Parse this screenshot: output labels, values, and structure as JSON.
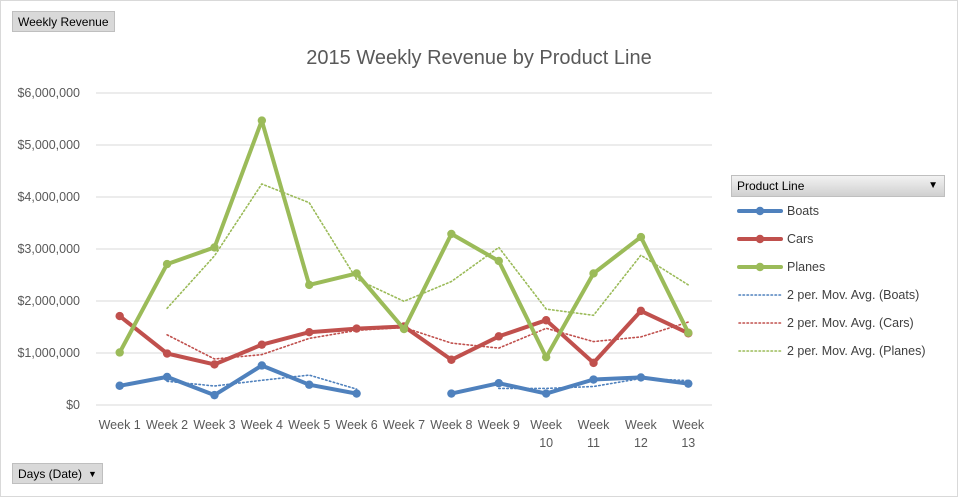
{
  "report_filter_button": {
    "label": "Weekly  Revenue"
  },
  "axis_field_button": {
    "label": "Days (Date)",
    "icon": "dropdown-arrow-icon"
  },
  "legend": {
    "header_label": "Product Line",
    "header_icon": "dropdown-arrow-icon",
    "position": "right"
  },
  "chart_data": {
    "type": "line",
    "title": "2015 Weekly Revenue by Product Line",
    "xlabel": "",
    "ylabel": "",
    "categories": [
      "Week 1",
      "Week 2",
      "Week 3",
      "Week 4",
      "Week 5",
      "Week 6",
      "Week 7",
      "Week 8",
      "Week 9",
      "Week 10",
      "Week 11",
      "Week 12",
      "Week 13"
    ],
    "y_ticks": [
      "$0",
      "$1,000,000",
      "$2,000,000",
      "$3,000,000",
      "$4,000,000",
      "$5,000,000",
      "$6,000,000"
    ],
    "ylim": [
      0,
      6000000
    ],
    "grid": true,
    "series": [
      {
        "name": "Boats",
        "color": "#4f81bd",
        "style": "solid",
        "values": [
          370000,
          540000,
          190000,
          760000,
          390000,
          220000,
          null,
          220000,
          420000,
          220000,
          490000,
          530000,
          410000
        ]
      },
      {
        "name": "Cars",
        "color": "#c0504d",
        "style": "solid",
        "values": [
          1710000,
          990000,
          780000,
          1160000,
          1400000,
          1470000,
          1510000,
          870000,
          1320000,
          1630000,
          810000,
          1810000,
          1380000
        ]
      },
      {
        "name": "Planes",
        "color": "#9bbb59",
        "style": "solid",
        "values": [
          1010000,
          2710000,
          3030000,
          5470000,
          2310000,
          2530000,
          1460000,
          3290000,
          2770000,
          920000,
          2530000,
          3230000,
          1390000
        ]
      },
      {
        "name": "2 per. Mov. Avg. (Boats)",
        "color": "#4f81bd",
        "style": "dotted",
        "values": [
          null,
          455000,
          365000,
          475000,
          575000,
          305000,
          null,
          null,
          320000,
          320000,
          355000,
          510000,
          470000
        ]
      },
      {
        "name": "2 per. Mov. Avg. (Cars)",
        "color": "#c0504d",
        "style": "dotted",
        "values": [
          null,
          1350000,
          885000,
          970000,
          1280000,
          1435000,
          1490000,
          1190000,
          1095000,
          1475000,
          1220000,
          1310000,
          1595000
        ]
      },
      {
        "name": "2 per. Mov. Avg. (Planes)",
        "color": "#9bbb59",
        "style": "dotted",
        "values": [
          null,
          1860000,
          2870000,
          4250000,
          3890000,
          2420000,
          1995000,
          2375000,
          3030000,
          1845000,
          1725000,
          2880000,
          2310000
        ]
      }
    ]
  }
}
